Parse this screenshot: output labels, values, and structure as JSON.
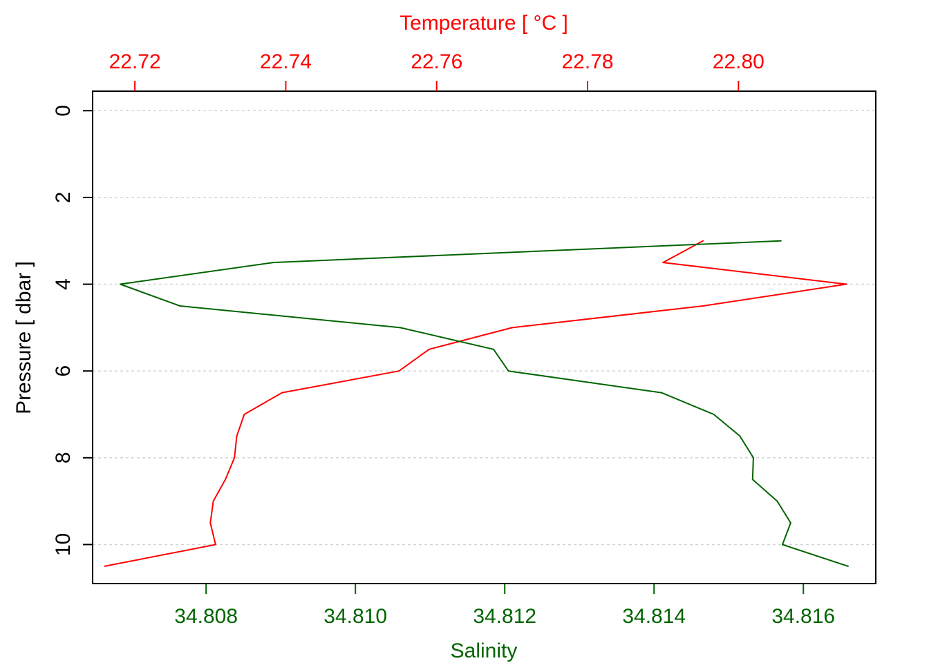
{
  "chart_data": {
    "type": "line",
    "title": "",
    "grid": "dashed horizontal",
    "colors": {
      "temperature": "#ff0000",
      "salinity": "#006400",
      "frame": "#000000",
      "grid": "#d3d3d3"
    },
    "y_axis": {
      "label": "Pressure [ dbar ]",
      "reversed": true,
      "range": [
        -0.45,
        10.9
      ],
      "ticks": [
        0,
        2,
        4,
        6,
        8,
        10
      ],
      "tick_labels": [
        "0",
        "2",
        "4",
        "6",
        "8",
        "10"
      ]
    },
    "top_axis": {
      "label": "Temperature [ °C ]",
      "range": [
        22.7144,
        22.8182
      ],
      "ticks": [
        22.72,
        22.74,
        22.76,
        22.78,
        22.8
      ],
      "tick_labels": [
        "22.72",
        "22.74",
        "22.76",
        "22.78",
        "22.80"
      ]
    },
    "bottom_axis": {
      "label": "Salinity",
      "range": [
        34.80648,
        34.81697
      ],
      "ticks": [
        34.808,
        34.81,
        34.812,
        34.814,
        34.816
      ],
      "tick_labels": [
        "34.808",
        "34.810",
        "34.812",
        "34.814",
        "34.816"
      ]
    },
    "series": [
      {
        "axis": "top",
        "color": "#ff0000",
        "points": [
          [
            22.7953,
            3.0
          ],
          [
            22.79,
            3.5
          ],
          [
            22.8143,
            4.0
          ],
          [
            22.7953,
            4.5
          ],
          [
            22.77,
            5.0
          ],
          [
            22.759,
            5.5
          ],
          [
            22.755,
            6.0
          ],
          [
            22.7395,
            6.5
          ],
          [
            22.7345,
            7.0
          ],
          [
            22.7335,
            7.5
          ],
          [
            22.7332,
            8.0
          ],
          [
            22.732,
            8.5
          ],
          [
            22.7304,
            9.0
          ],
          [
            22.73,
            9.5
          ],
          [
            22.7307,
            10.0
          ],
          [
            22.716,
            10.5
          ]
        ]
      },
      {
        "axis": "bottom",
        "color": "#006400",
        "points": [
          [
            34.8157,
            3.0
          ],
          [
            34.8089,
            3.5
          ],
          [
            34.80685,
            4.0
          ],
          [
            34.80765,
            4.5
          ],
          [
            34.8106,
            5.0
          ],
          [
            34.81185,
            5.5
          ],
          [
            34.81205,
            6.0
          ],
          [
            34.8141,
            6.5
          ],
          [
            34.8148,
            7.0
          ],
          [
            34.81515,
            7.5
          ],
          [
            34.81533,
            8.0
          ],
          [
            34.81532,
            8.5
          ],
          [
            34.81565,
            9.0
          ],
          [
            34.81583,
            9.5
          ],
          [
            34.81572,
            10.0
          ],
          [
            34.8166,
            10.5
          ]
        ]
      }
    ]
  }
}
